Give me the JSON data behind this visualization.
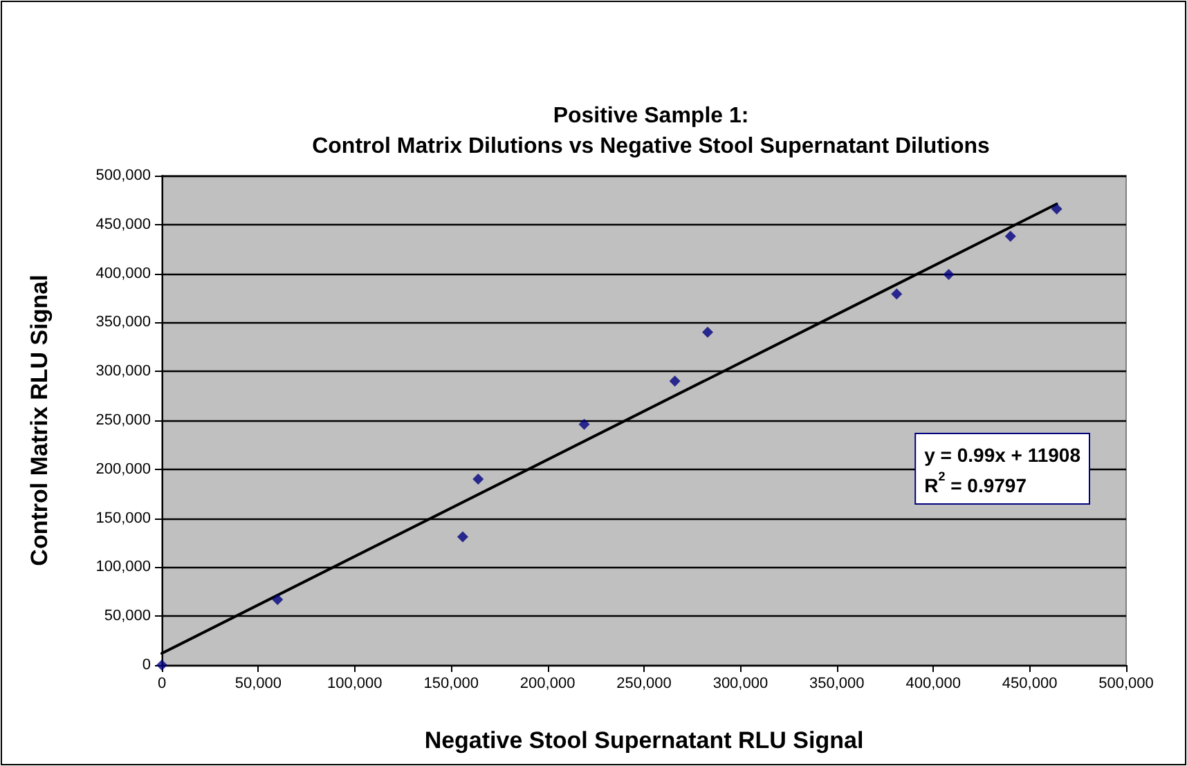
{
  "chart_data": {
    "type": "scatter",
    "title": "Positive Sample 1:\nControl Matrix Dilutions vs Negative Stool Supernatant Dilutions",
    "xlabel": "Negative Stool Supernatant RLU Signal",
    "ylabel": "Control Matrix RLU Signal",
    "x": [
      0,
      60000,
      156000,
      164000,
      219000,
      266000,
      283000,
      381000,
      408000,
      440000,
      464000
    ],
    "series": [
      {
        "color": "#000080",
        "marker": "diamond",
        "values": [
          0,
          67000,
          131000,
          190000,
          246000,
          290000,
          340000,
          379000,
          399000,
          438000,
          466000
        ]
      },
      {
        "type": "line",
        "color": "#000000",
        "marker": "none",
        "line_style": "solid",
        "x": [
          0,
          464000
        ],
        "values": [
          12000,
          471000
        ]
      }
    ],
    "annotations": [
      "y = 0.99x + 11908",
      "R$^{2}$ = 0.9797"
    ],
    "xlim": [
      0,
      500000
    ],
    "xticks": [
      0,
      {
        "value": 50000,
        "label": "50,000"
      },
      {
        "value": 100000,
        "label": "100,000"
      },
      {
        "value": 150000,
        "label": "150,000"
      },
      {
        "value": 200000,
        "label": "200,000"
      },
      {
        "value": 250000,
        "label": "250,000"
      },
      {
        "value": 300000,
        "label": "300,000"
      },
      {
        "value": 350000,
        "label": "350,000"
      },
      {
        "value": 400000,
        "label": "400,000"
      },
      {
        "value": 450000,
        "label": "450,000"
      },
      {
        "value": 500000,
        "label": "500,000"
      }
    ],
    "ylim": [
      0,
      500000
    ],
    "yticks": [
      0,
      {
        "value": 50000,
        "label": "50,000"
      },
      {
        "value": 100000,
        "label": "100,000"
      },
      {
        "value": 150000,
        "label": "150,000"
      },
      {
        "value": 200000,
        "label": "200,000"
      },
      {
        "value": 250000,
        "label": "250,000"
      },
      {
        "value": 300000,
        "label": "300,000"
      },
      {
        "value": 350000,
        "label": "350,000"
      },
      {
        "value": 400000,
        "label": "400,000"
      },
      {
        "value": 450000,
        "label": "450,000"
      },
      {
        "value": 500000,
        "label": "500,000"
      }
    ],
    "grid": "y"
  }
}
